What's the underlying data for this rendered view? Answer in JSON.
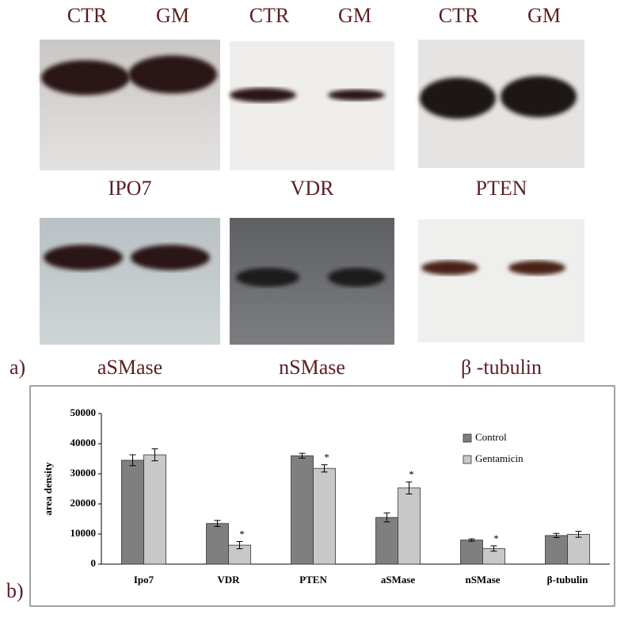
{
  "figure": {
    "panel_a_label": "a)",
    "panel_b_label": "b)",
    "blots": [
      {
        "lanes": [
          "CTR",
          "GM"
        ],
        "name": "IPO7"
      },
      {
        "lanes": [
          "CTR",
          "GM"
        ],
        "name": "VDR"
      },
      {
        "lanes": [
          "CTR",
          "GM"
        ],
        "name": "PTEN"
      },
      {
        "name": "aSMase"
      },
      {
        "name": "nSMase"
      },
      {
        "name": "β -tubulin"
      }
    ]
  },
  "chart_data": {
    "type": "bar",
    "ylabel": "area density",
    "categories": [
      "Ipo7",
      "VDR",
      "PTEN",
      "aSMase",
      "nSMase",
      "β-tubulin"
    ],
    "series": [
      {
        "name": "Control",
        "color": "#7f7f7f",
        "values": [
          34500,
          13500,
          36000,
          15500,
          8000,
          9500
        ],
        "errors": [
          1800,
          1000,
          800,
          1500,
          400,
          700
        ]
      },
      {
        "name": "Gentamicin",
        "color": "#c8c8c8",
        "values": [
          36300,
          6300,
          31800,
          25300,
          5200,
          9900
        ],
        "errors": [
          2000,
          1200,
          1200,
          2000,
          900,
          1000
        ],
        "markers": [
          null,
          "*",
          "*",
          "*",
          "*",
          null
        ]
      }
    ],
    "ylim": [
      0,
      50000
    ],
    "yticks": [
      0,
      10000,
      20000,
      30000,
      40000,
      50000
    ],
    "legend": "upper-right"
  }
}
